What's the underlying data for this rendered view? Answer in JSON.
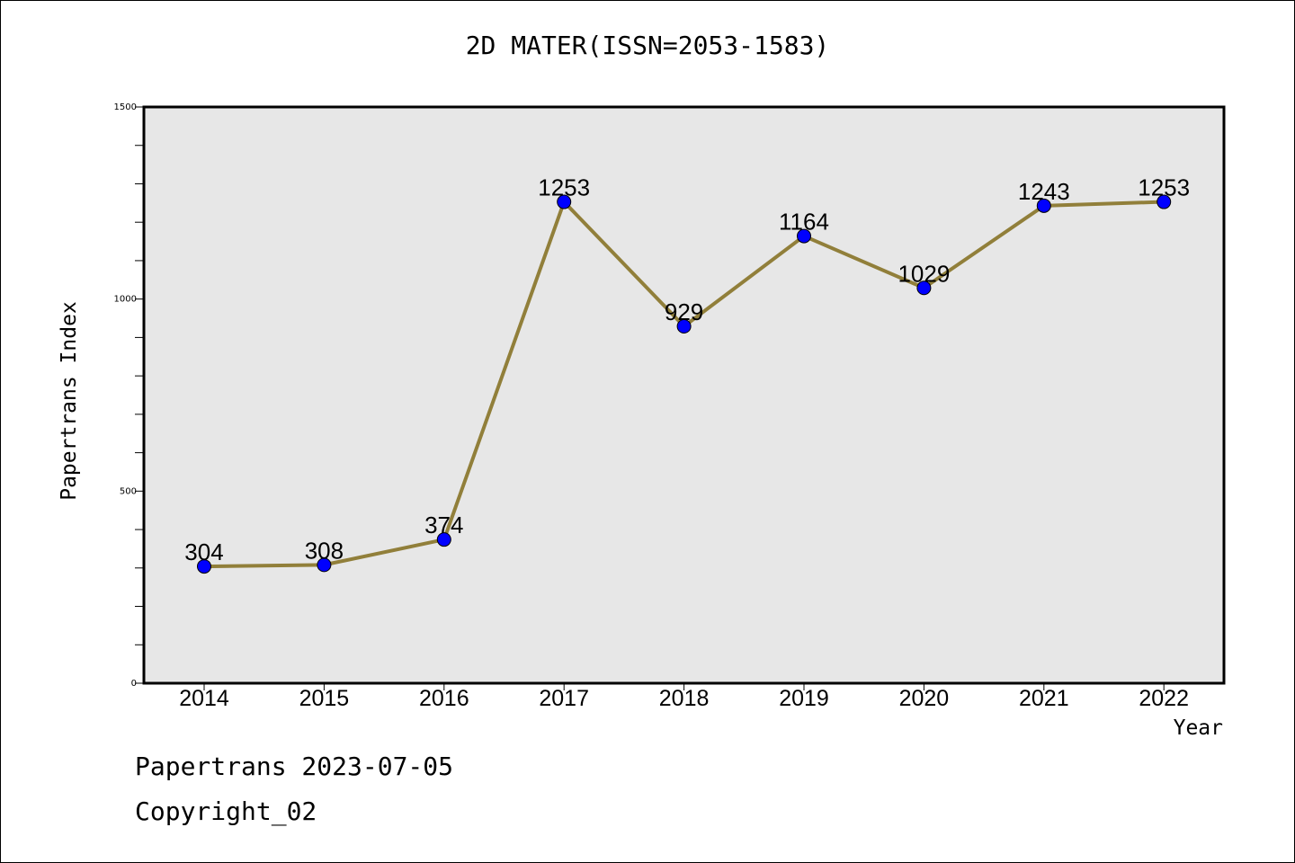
{
  "chart_data": {
    "type": "line",
    "title": "2D MATER(ISSN=2053-1583)",
    "xlabel": "Year",
    "ylabel": "Papertrans Index",
    "categories": [
      "2014",
      "2015",
      "2016",
      "2017",
      "2018",
      "2019",
      "2020",
      "2021",
      "2022"
    ],
    "values": [
      304,
      308,
      374,
      1253,
      929,
      1164,
      1029,
      1243,
      1253
    ],
    "data_labels": [
      "304",
      "308",
      "374",
      "1253",
      "929",
      "1164",
      "1029",
      "1243",
      "1253"
    ],
    "ylim": [
      0,
      1500
    ],
    "yticks": [
      0,
      500,
      1000,
      1500
    ],
    "yticks_minor": [
      100,
      200,
      300,
      400,
      600,
      700,
      800,
      900,
      1100,
      1200,
      1300,
      1400
    ],
    "grid": false,
    "colors": {
      "line": "#917f3a",
      "marker": "#0000ff",
      "plot_background": "#e7e7e7"
    }
  },
  "footer": {
    "line1": "Papertrans 2023-07-05",
    "line2": "Copyright_02"
  }
}
